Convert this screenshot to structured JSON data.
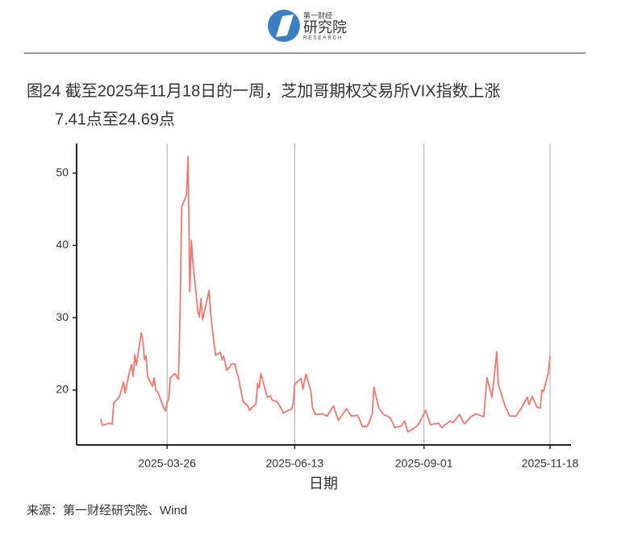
{
  "header": {
    "logo_small": "第一财经",
    "logo_large": "研究院",
    "logo_sub": "RESEARCH"
  },
  "chart_data": {
    "type": "line",
    "title_lines": [
      "图24  截至2025年11月18日的一周，芝加哥期权交易所VIX指数上涨",
      "7.41点至24.69点"
    ],
    "xlabel": "日期",
    "source": "来源：第一财经研究院、Wind",
    "color": "#f07870",
    "x": [
      "2025-02-13",
      "2025-02-14",
      "2025-02-18",
      "2025-02-20",
      "2025-02-21",
      "2025-02-24",
      "2025-02-25",
      "2025-02-27",
      "2025-02-28",
      "2025-03-03",
      "2025-03-04",
      "2025-03-05",
      "2025-03-06",
      "2025-03-07",
      "2025-03-10",
      "2025-03-11",
      "2025-03-12",
      "2025-03-13",
      "2025-03-14",
      "2025-03-17",
      "2025-03-18",
      "2025-03-19",
      "2025-03-20",
      "2025-03-21",
      "2025-03-24",
      "2025-03-25",
      "2025-03-26",
      "2025-03-27",
      "2025-03-28",
      "2025-03-31",
      "2025-04-01",
      "2025-04-02",
      "2025-04-03",
      "2025-04-04",
      "2025-04-07",
      "2025-04-08",
      "2025-04-09",
      "2025-04-10",
      "2025-04-11",
      "2025-04-14",
      "2025-04-15",
      "2025-04-16",
      "2025-04-17",
      "2025-04-21",
      "2025-04-22",
      "2025-04-23",
      "2025-04-24",
      "2025-04-25",
      "2025-04-28",
      "2025-04-29",
      "2025-04-30",
      "2025-05-02",
      "2025-05-05",
      "2025-05-07",
      "2025-05-08",
      "2025-05-09",
      "2025-05-12",
      "2025-05-13",
      "2025-05-15",
      "2025-05-16",
      "2025-05-20",
      "2025-05-21",
      "2025-05-22",
      "2025-05-23",
      "2025-05-27",
      "2025-05-29",
      "2025-05-30",
      "2025-06-02",
      "2025-06-04",
      "2025-06-06",
      "2025-06-09",
      "2025-06-11",
      "2025-06-12",
      "2025-06-13",
      "2025-06-17",
      "2025-06-18",
      "2025-06-20",
      "2025-06-23",
      "2025-06-24",
      "2025-06-26",
      "2025-06-30",
      "2025-07-03",
      "2025-07-07",
      "2025-07-10",
      "2025-07-15",
      "2025-07-18",
      "2025-07-22",
      "2025-07-25",
      "2025-07-28",
      "2025-07-31",
      "2025-08-01",
      "2025-08-04",
      "2025-08-07",
      "2025-08-11",
      "2025-08-14",
      "2025-08-18",
      "2025-08-20",
      "2025-08-22",
      "2025-08-27",
      "2025-08-29",
      "2025-09-02",
      "2025-09-05",
      "2025-09-10",
      "2025-09-12",
      "2025-09-17",
      "2025-09-19",
      "2025-09-23",
      "2025-09-26",
      "2025-09-30",
      "2025-10-03",
      "2025-10-08",
      "2025-10-10",
      "2025-10-13",
      "2025-10-14",
      "2025-10-16",
      "2025-10-17",
      "2025-10-21",
      "2025-10-24",
      "2025-10-28",
      "2025-10-31",
      "2025-11-04",
      "2025-11-05",
      "2025-11-07",
      "2025-11-10",
      "2025-11-12",
      "2025-11-13",
      "2025-11-14",
      "2025-11-17",
      "2025-11-18"
    ],
    "values": [
      16.0,
      15.1,
      15.4,
      15.3,
      18.2,
      18.9,
      19.4,
      21.1,
      19.6,
      22.8,
      23.5,
      21.9,
      24.9,
      23.4,
      27.9,
      26.9,
      24.2,
      24.7,
      21.8,
      20.5,
      21.7,
      19.9,
      19.8,
      19.3,
      17.5,
      17.1,
      18.3,
      18.7,
      21.7,
      22.3,
      21.8,
      21.5,
      30.0,
      45.3,
      47.0,
      52.3,
      33.6,
      40.7,
      37.6,
      30.9,
      30.1,
      32.6,
      29.7,
      33.8,
      30.6,
      28.5,
      26.5,
      24.8,
      25.2,
      24.2,
      24.7,
      22.7,
      23.6,
      23.6,
      22.5,
      21.9,
      18.4,
      18.2,
      17.8,
      17.2,
      18.1,
      20.9,
      20.3,
      22.3,
      19.0,
      19.2,
      18.6,
      18.4,
      17.7,
      16.8,
      17.2,
      17.3,
      18.0,
      20.8,
      21.6,
      20.1,
      22.2,
      19.8,
      17.5,
      16.6,
      16.7,
      16.4,
      17.8,
      15.8,
      17.4,
      16.4,
      16.5,
      14.9,
      15.0,
      16.7,
      20.4,
      17.5,
      16.6,
      16.2,
      14.8,
      15.0,
      15.7,
      14.2,
      14.9,
      15.4,
      17.2,
      15.2,
      15.4,
      14.8,
      15.7,
      15.5,
      16.6,
      15.3,
      16.3,
      16.7,
      16.3,
      21.7,
      19.0,
      20.8,
      25.3,
      20.8,
      17.9,
      16.4,
      16.4,
      17.4,
      19.0,
      18.0,
      19.1,
      17.6,
      17.5,
      20.0,
      19.8,
      22.4,
      24.7
    ],
    "xlim": [
      "2025-01-29",
      "2025-12-01"
    ],
    "xticks": [
      "2025-03-26",
      "2025-06-13",
      "2025-09-01",
      "2025-11-18"
    ],
    "ylim": [
      12.4,
      54.1
    ],
    "yticks": [
      20,
      30,
      40,
      50
    ],
    "grid": "x"
  }
}
